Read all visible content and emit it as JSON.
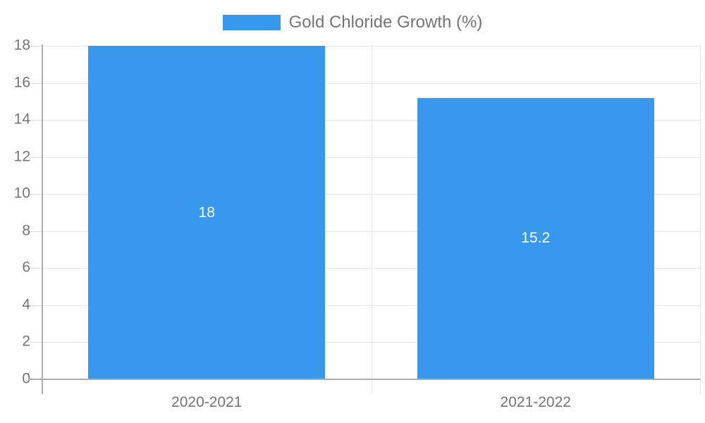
{
  "chart_data": {
    "type": "bar",
    "title": "",
    "categories": [
      "2020-2021",
      "2021-2022"
    ],
    "series": [
      {
        "name": "Gold Chloride Growth (%)",
        "color": "#3899ec",
        "values": [
          18,
          15.2
        ]
      }
    ],
    "value_labels": [
      "18",
      "15.2"
    ],
    "xlabel": "",
    "ylabel": "",
    "ylim": [
      0,
      18
    ],
    "ytick_step": 2,
    "yticks": [
      "0",
      "2",
      "4",
      "6",
      "8",
      "10",
      "12",
      "14",
      "16",
      "18"
    ],
    "grid": true,
    "legend_position": "top-center"
  },
  "legend": {
    "label": "Gold Chloride Growth (%)"
  },
  "colors": {
    "bar": "#3899ec",
    "grid": "#e6e6e6",
    "tick_mark": "#dcdcdc",
    "axis": "#adadad",
    "tick_text": "#757575",
    "legend_text": "#757575",
    "data_label": "#ffffff",
    "background": "#ffffff"
  }
}
